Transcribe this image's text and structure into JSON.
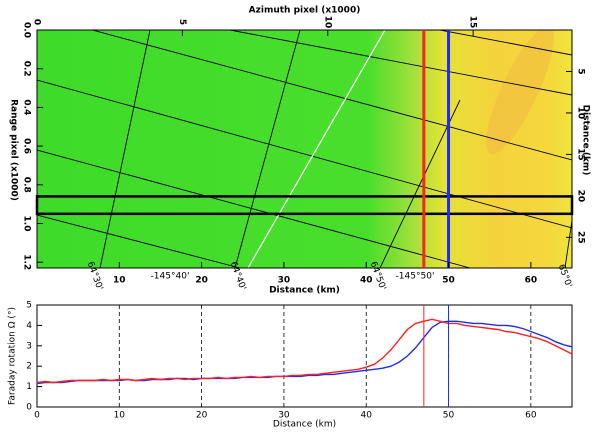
{
  "chart_data": [
    {
      "type": "image",
      "x_label": "Distance (km)",
      "x2_label": "Azimuth pixel (x1000)",
      "y_label": "Range pixel (x1000)",
      "y2_label": "Distance (km)",
      "xlim": [
        0,
        65
      ],
      "xticks": [
        10,
        20,
        30,
        40,
        50,
        60
      ],
      "x2lim": [
        0,
        18.4
      ],
      "x2ticks": [
        0,
        5,
        10,
        15
      ],
      "ylim": [
        0,
        1.23
      ],
      "yticks": [
        {
          "value": 0,
          "label": "0.0"
        },
        0.2,
        0.4,
        0.6,
        0.8,
        {
          "value": 1,
          "label": "1.0"
        },
        1.2
      ],
      "y2lim": [
        0,
        28.7
      ],
      "y2ticks": [
        5,
        10,
        15,
        20,
        25
      ],
      "markers": [
        {
          "x": 47,
          "color": "#ff2020"
        },
        {
          "x": 50,
          "color": "#1a2cff"
        }
      ],
      "box_range": [
        0.86,
        0.95
      ],
      "graticule_labels": [
        "64°30'",
        "-145°40'",
        "64°40'",
        "64°50'",
        "-145°50'",
        "65°0'"
      ]
    },
    {
      "type": "line",
      "x_label": "Distance (km)",
      "y_label": "Faraday rotation Ω (°)",
      "xlim": [
        0,
        65
      ],
      "xticks": [
        0,
        10,
        20,
        30,
        40,
        50,
        60
      ],
      "ylim": [
        0,
        5
      ],
      "yticks": [
        0,
        1,
        2,
        3,
        4,
        5
      ],
      "grid": true,
      "markers": [
        {
          "x": 47,
          "color": "#ff2020"
        },
        {
          "x": 50,
          "color": "#1a2cff"
        }
      ],
      "x": [
        0,
        1,
        2,
        3,
        4,
        5,
        6,
        7,
        8,
        9,
        10,
        11,
        12,
        13,
        14,
        15,
        16,
        17,
        18,
        19,
        20,
        21,
        22,
        23,
        24,
        25,
        26,
        27,
        28,
        29,
        30,
        31,
        32,
        33,
        34,
        35,
        36,
        37,
        38,
        39,
        40,
        41,
        42,
        43,
        44,
        45,
        46,
        47,
        48,
        49,
        50,
        51,
        52,
        53,
        54,
        55,
        56,
        57,
        58,
        59,
        60,
        61,
        62,
        63,
        64,
        65
      ],
      "series": [
        {
          "color": "#1a2cff",
          "values": [
            1.15,
            1.2,
            1.2,
            1.2,
            1.25,
            1.3,
            1.3,
            1.3,
            1.3,
            1.3,
            1.3,
            1.35,
            1.3,
            1.3,
            1.35,
            1.35,
            1.35,
            1.4,
            1.4,
            1.35,
            1.4,
            1.4,
            1.4,
            1.4,
            1.4,
            1.45,
            1.45,
            1.45,
            1.45,
            1.5,
            1.5,
            1.5,
            1.5,
            1.55,
            1.55,
            1.6,
            1.6,
            1.65,
            1.7,
            1.75,
            1.8,
            1.85,
            1.9,
            2.0,
            2.2,
            2.5,
            2.9,
            3.4,
            3.9,
            4.15,
            4.2,
            4.2,
            4.15,
            4.1,
            4.1,
            4.05,
            4.0,
            4.0,
            3.95,
            3.85,
            3.7,
            3.55,
            3.4,
            3.2,
            3.05,
            2.95
          ]
        },
        {
          "color": "#ff2020",
          "values": [
            1.2,
            1.25,
            1.2,
            1.25,
            1.3,
            1.3,
            1.3,
            1.3,
            1.35,
            1.3,
            1.35,
            1.35,
            1.3,
            1.35,
            1.4,
            1.35,
            1.4,
            1.4,
            1.35,
            1.4,
            1.4,
            1.4,
            1.45,
            1.4,
            1.45,
            1.45,
            1.5,
            1.45,
            1.5,
            1.5,
            1.5,
            1.55,
            1.55,
            1.6,
            1.6,
            1.65,
            1.7,
            1.75,
            1.8,
            1.85,
            1.95,
            2.1,
            2.4,
            2.8,
            3.3,
            3.8,
            4.1,
            4.2,
            4.3,
            4.2,
            4.1,
            4.1,
            4.0,
            3.95,
            3.9,
            3.85,
            3.8,
            3.7,
            3.65,
            3.55,
            3.45,
            3.35,
            3.2,
            3.0,
            2.8,
            2.6
          ]
        }
      ]
    }
  ]
}
